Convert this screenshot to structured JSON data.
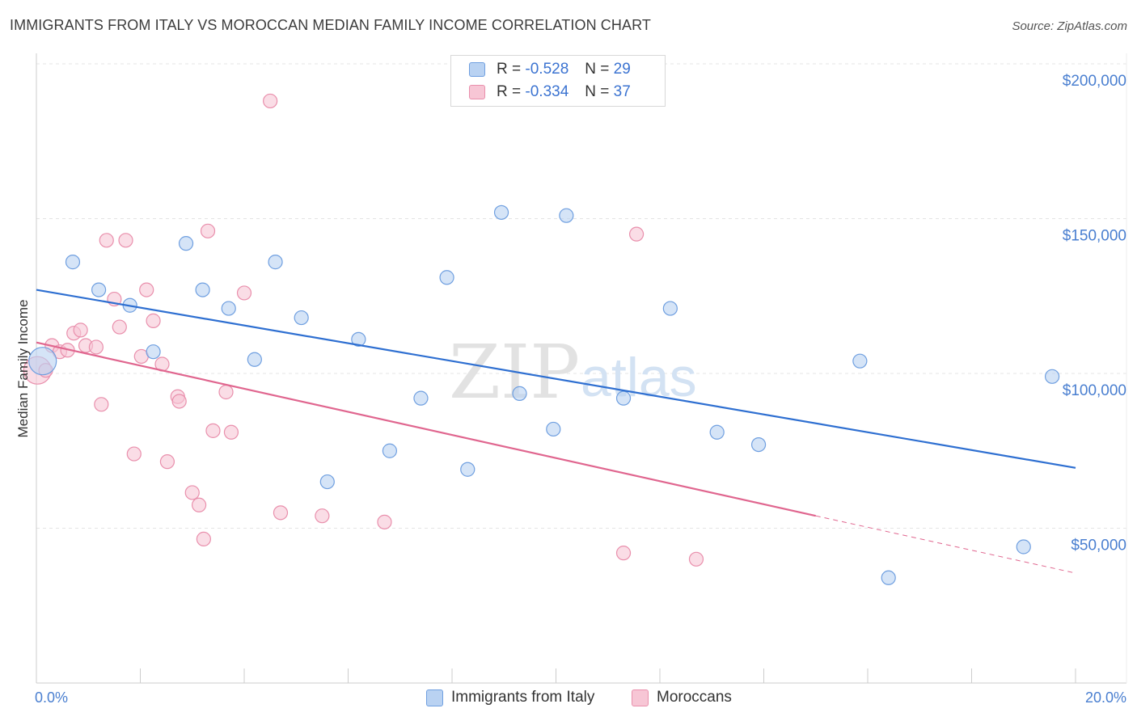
{
  "header": {
    "title": "IMMIGRANTS FROM ITALY VS MOROCCAN MEDIAN FAMILY INCOME CORRELATION CHART",
    "source": "Source: ZipAtlas.com"
  },
  "watermark": {
    "zip": "ZIP",
    "atlas": "atlas"
  },
  "legend": {
    "rows": [
      {
        "r_label": "R =",
        "r_value": "-0.528",
        "n_label": "N =",
        "n_value": "29"
      },
      {
        "r_label": "R =",
        "r_value": "-0.334",
        "n_label": "N =",
        "n_value": "37"
      }
    ]
  },
  "bottom_legend": {
    "italy": "Immigrants from Italy",
    "moroccans": "Moroccans"
  },
  "colors": {
    "italy_fill": "#b9d2f2",
    "italy_stroke": "#6f9fe0",
    "italy_line": "#2e6fd1",
    "moroccan_fill": "#f7c6d5",
    "moroccan_stroke": "#e98fac",
    "moroccan_line": "#e0668f",
    "tick_label": "#4a7fd0",
    "grid": "#e4e4e4"
  },
  "chart_data": {
    "type": "scatter",
    "title": "IMMIGRANTS FROM ITALY VS MOROCCAN MEDIAN FAMILY INCOME CORRELATION CHART",
    "xlabel": "",
    "ylabel": "Median Family Income",
    "xlim": [
      0,
      20
    ],
    "ylim": [
      0,
      200000
    ],
    "x_tick_labels": [
      "0.0%",
      "20.0%"
    ],
    "y_ticks": [
      {
        "value": 50000,
        "label": "$50,000"
      },
      {
        "value": 100000,
        "label": "$100,000"
      },
      {
        "value": 150000,
        "label": "$150,000"
      },
      {
        "value": 200000,
        "label": "$200,000"
      }
    ],
    "grid": true,
    "legend_position": "top-center",
    "series": [
      {
        "name": "Immigrants from Italy",
        "color": "#b9d2f2",
        "points": [
          {
            "x": 0.12,
            "y": 104000,
            "big": true
          },
          {
            "x": 0.7,
            "y": 136000
          },
          {
            "x": 1.2,
            "y": 127000
          },
          {
            "x": 1.8,
            "y": 122000
          },
          {
            "x": 2.25,
            "y": 107000
          },
          {
            "x": 2.88,
            "y": 142000
          },
          {
            "x": 3.2,
            "y": 127000
          },
          {
            "x": 3.7,
            "y": 121000
          },
          {
            "x": 4.2,
            "y": 104500
          },
          {
            "x": 4.6,
            "y": 136000
          },
          {
            "x": 5.1,
            "y": 118000
          },
          {
            "x": 5.6,
            "y": 65000
          },
          {
            "x": 6.2,
            "y": 111000
          },
          {
            "x": 6.8,
            "y": 75000
          },
          {
            "x": 7.4,
            "y": 92000
          },
          {
            "x": 7.9,
            "y": 131000
          },
          {
            "x": 8.3,
            "y": 69000
          },
          {
            "x": 8.95,
            "y": 152000
          },
          {
            "x": 9.3,
            "y": 93500
          },
          {
            "x": 9.95,
            "y": 82000
          },
          {
            "x": 10.2,
            "y": 151000
          },
          {
            "x": 11.3,
            "y": 92000
          },
          {
            "x": 12.2,
            "y": 121000
          },
          {
            "x": 13.1,
            "y": 81000
          },
          {
            "x": 13.9,
            "y": 77000
          },
          {
            "x": 15.85,
            "y": 104000
          },
          {
            "x": 16.4,
            "y": 34000
          },
          {
            "x": 19.0,
            "y": 44000
          },
          {
            "x": 19.55,
            "y": 99000
          }
        ],
        "trend": {
          "x0": 0,
          "y0": 127000,
          "x1": 20,
          "y1": 69500
        }
      },
      {
        "name": "Moroccans",
        "color": "#f7c6d5",
        "points": [
          {
            "x": 0.02,
            "y": 101000,
            "big": true
          },
          {
            "x": 0.18,
            "y": 101000
          },
          {
            "x": 0.3,
            "y": 109000
          },
          {
            "x": 0.45,
            "y": 107000
          },
          {
            "x": 0.6,
            "y": 107500
          },
          {
            "x": 0.72,
            "y": 113000
          },
          {
            "x": 0.85,
            "y": 114000
          },
          {
            "x": 0.95,
            "y": 109000
          },
          {
            "x": 1.15,
            "y": 108500
          },
          {
            "x": 1.25,
            "y": 90000
          },
          {
            "x": 1.35,
            "y": 143000
          },
          {
            "x": 1.5,
            "y": 124000
          },
          {
            "x": 1.6,
            "y": 115000
          },
          {
            "x": 1.72,
            "y": 143000
          },
          {
            "x": 1.88,
            "y": 74000
          },
          {
            "x": 2.02,
            "y": 105500
          },
          {
            "x": 2.12,
            "y": 127000
          },
          {
            "x": 2.25,
            "y": 117000
          },
          {
            "x": 2.42,
            "y": 103000
          },
          {
            "x": 2.52,
            "y": 71500
          },
          {
            "x": 2.72,
            "y": 92500
          },
          {
            "x": 2.75,
            "y": 91000
          },
          {
            "x": 3.0,
            "y": 61500
          },
          {
            "x": 3.13,
            "y": 57500
          },
          {
            "x": 3.22,
            "y": 46500
          },
          {
            "x": 3.3,
            "y": 146000
          },
          {
            "x": 3.4,
            "y": 81500
          },
          {
            "x": 3.65,
            "y": 94000
          },
          {
            "x": 3.75,
            "y": 81000
          },
          {
            "x": 4.0,
            "y": 126000
          },
          {
            "x": 4.5,
            "y": 188000
          },
          {
            "x": 4.7,
            "y": 55000
          },
          {
            "x": 5.5,
            "y": 54000
          },
          {
            "x": 6.7,
            "y": 52000
          },
          {
            "x": 11.3,
            "y": 42000
          },
          {
            "x": 11.55,
            "y": 145000
          },
          {
            "x": 12.7,
            "y": 40000
          }
        ],
        "trend": {
          "x0": 0,
          "y0": 110000,
          "x1": 15,
          "y1": 54000
        },
        "trend_dashed": {
          "x0": 15,
          "y0": 54000,
          "x1": 20,
          "y1": 35500
        }
      }
    ]
  }
}
